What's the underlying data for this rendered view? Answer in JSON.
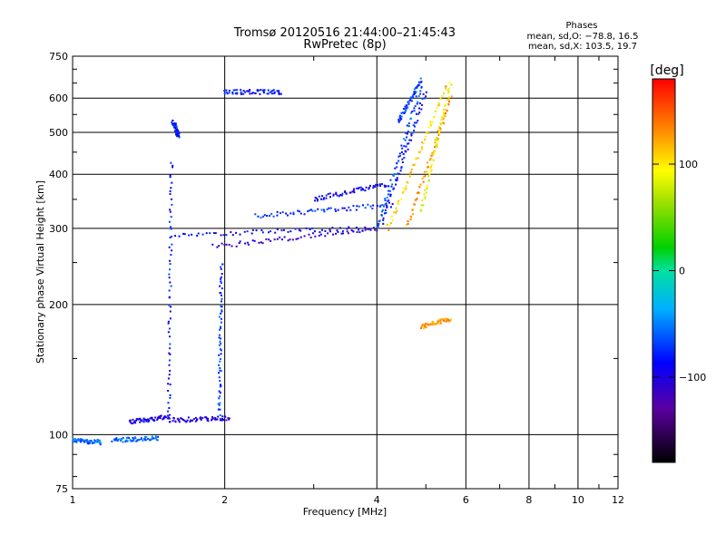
{
  "chart_data": {
    "type": "scatter",
    "title": "Tromsø 20120516 21:44:00–21:45:43",
    "subtitle": "RwPretec (8p)",
    "xlabel": "Frequency [MHz]",
    "ylabel": "Stationary phase Virtual Height [km]",
    "x_scale": "log",
    "y_scale": "log",
    "xlim": [
      1,
      12
    ],
    "ylim": [
      75,
      750
    ],
    "x_ticks": [
      1,
      2,
      4,
      6,
      8,
      10,
      12
    ],
    "x_tick_labels": [
      "1",
      "2",
      "4",
      "6",
      "8",
      "10",
      "12"
    ],
    "y_ticks": [
      75,
      100,
      200,
      300,
      400,
      500,
      600,
      750
    ],
    "y_tick_labels": [
      "75",
      "100",
      "200",
      "300",
      "400",
      "500",
      "600",
      "750"
    ],
    "grid": true,
    "stats": {
      "heading": "Phases",
      "line1": "mean, sd,O: −78.8, 16.5",
      "line2": "mean, sd,X: 103.5, 19.7"
    },
    "colorbar": {
      "unit": "[deg]",
      "range": [
        -180,
        180
      ],
      "ticks": [
        100,
        0,
        -100
      ],
      "tick_labels": [
        "100",
        "0",
        "−100"
      ]
    },
    "series": [
      {
        "role": "O-mode echoes (blue, phase ≈ −80°)",
        "traces": [
          {
            "f_start": 1.0,
            "f_end": 1.14,
            "h_start": 97,
            "h_end": 96,
            "phase": -60
          },
          {
            "f_start": 1.2,
            "f_end": 1.48,
            "h_start": 97,
            "h_end": 98,
            "phase": -60
          },
          {
            "f_start": 1.3,
            "f_end": 1.55,
            "h_start": 107,
            "h_end": 110,
            "phase": -95
          },
          {
            "f_start": 1.55,
            "f_end": 2.05,
            "h_start": 108,
            "h_end": 109,
            "phase": -105
          },
          {
            "f_start": 1.55,
            "f_end": 1.57,
            "h_start": 110,
            "h_end": 430,
            "phase": -80
          },
          {
            "f_start": 1.95,
            "f_end": 1.97,
            "h_start": 110,
            "h_end": 250,
            "phase": -70
          },
          {
            "f_start": 1.6,
            "f_end": 4.0,
            "h_start": 290,
            "h_end": 300,
            "phase": -90
          },
          {
            "f_start": 1.9,
            "f_end": 4.0,
            "h_start": 272,
            "h_end": 300,
            "phase": -110
          },
          {
            "f_start": 2.3,
            "f_end": 4.3,
            "h_start": 320,
            "h_end": 340,
            "phase": -75
          },
          {
            "f_start": 3.0,
            "f_end": 4.2,
            "h_start": 350,
            "h_end": 380,
            "phase": -90
          },
          {
            "f_start": 4.0,
            "f_end": 4.9,
            "h_start": 300,
            "h_end": 640,
            "phase": -65
          },
          {
            "f_start": 4.1,
            "f_end": 5.0,
            "h_start": 310,
            "h_end": 620,
            "phase": -85
          },
          {
            "f_start": 2.0,
            "f_end": 2.6,
            "h_start": 620,
            "h_end": 620,
            "phase": -85
          },
          {
            "f_start": 1.58,
            "f_end": 1.62,
            "h_start": 530,
            "h_end": 490,
            "phase": -80
          },
          {
            "f_start": 4.4,
            "f_end": 4.9,
            "h_start": 530,
            "h_end": 660,
            "phase": -70
          }
        ]
      },
      {
        "role": "X-mode echoes (orange/yellow, phase ≈ 100°)",
        "traces": [
          {
            "f_start": 4.2,
            "f_end": 5.5,
            "h_start": 300,
            "h_end": 640,
            "phase": 110
          },
          {
            "f_start": 4.6,
            "f_end": 5.6,
            "h_start": 305,
            "h_end": 600,
            "phase": 130
          },
          {
            "f_start": 4.9,
            "f_end": 5.6,
            "h_start": 330,
            "h_end": 650,
            "phase": 90
          },
          {
            "f_start": 4.9,
            "f_end": 5.6,
            "h_start": 178,
            "h_end": 185,
            "phase": 125
          }
        ]
      }
    ]
  }
}
